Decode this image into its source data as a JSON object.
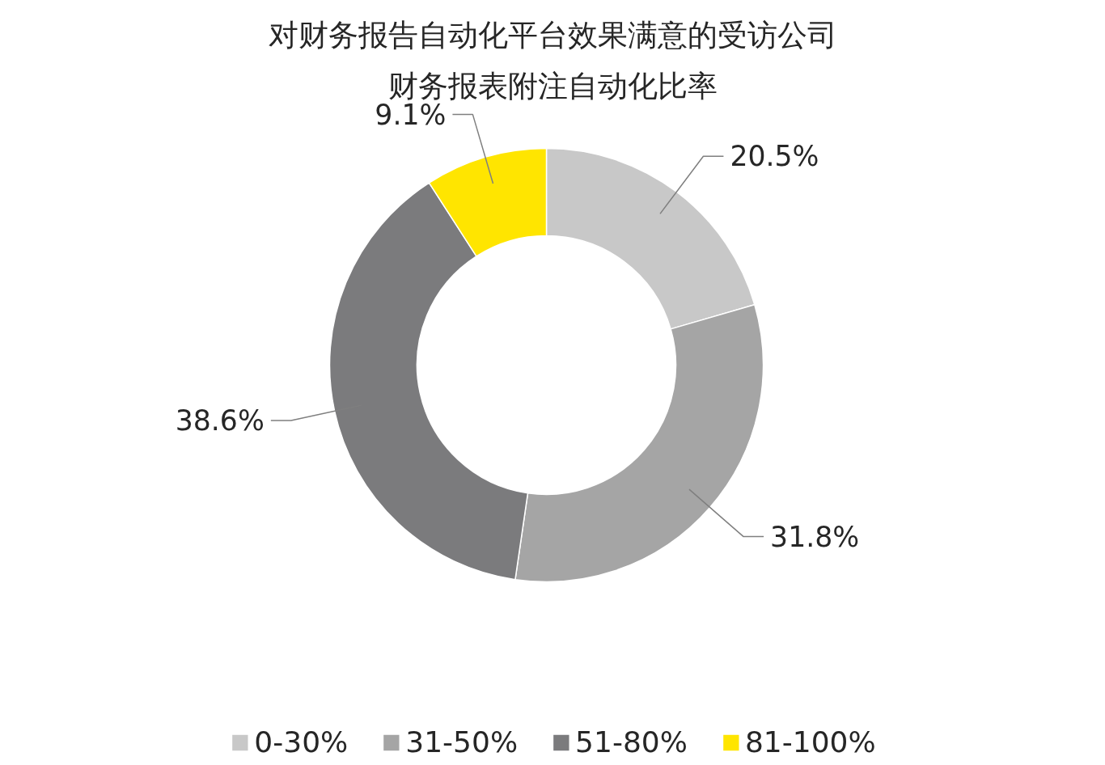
{
  "chart_data": {
    "type": "donut",
    "title": "对财务报告自动化平台效果满意的受访公司财务报表附注自动化比率",
    "categories": [
      "0-30%",
      "31-50%",
      "51-80%",
      "81-100%"
    ],
    "values": [
      20.5,
      31.8,
      38.6,
      9.1
    ],
    "value_labels": [
      "20.5%",
      "31.8%",
      "38.6%",
      "9.1%"
    ],
    "colors": [
      "#c8c8c8",
      "#a5a5a5",
      "#7b7b7d",
      "#ffe500"
    ],
    "legend": "bottom"
  }
}
